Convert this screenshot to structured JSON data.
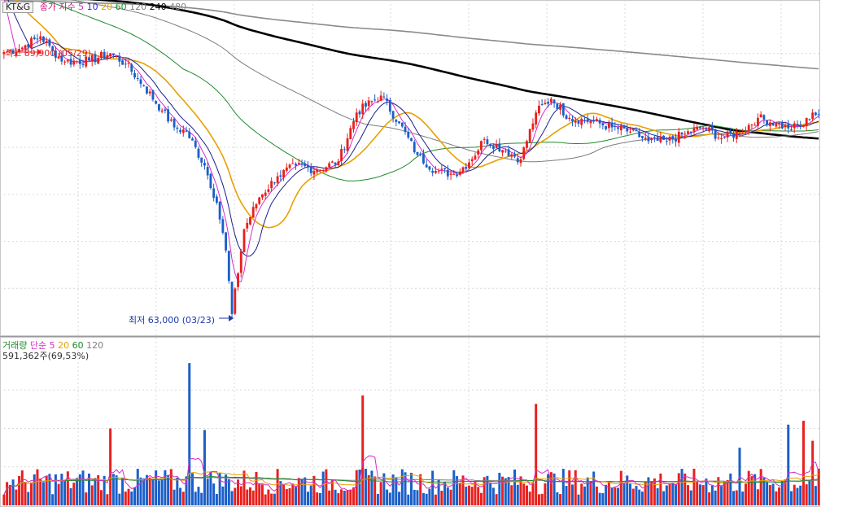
{
  "price_header": {
    "symbol": "KT&G",
    "label": "종가 지수",
    "ma_periods": [
      "5",
      "10",
      "20",
      "60",
      "120",
      "240",
      "480"
    ]
  },
  "volume_header": {
    "label": "거래량",
    "ma_label": "단순",
    "ma_periods": [
      "5",
      "20",
      "60",
      "120"
    ],
    "value_text": "591,362주(69,53%)"
  },
  "annotations": {
    "high": "최고 89,900 (05/29)",
    "low": "최저 63,000 (03/23)"
  },
  "colors": {
    "up": "#e8201e",
    "down": "#1a5fc9",
    "ma5": "#d62dc8",
    "ma10": "#1b1f8a",
    "ma20": "#e8a000",
    "ma60": "#1f8a2b",
    "ma120": "#7d7d7d",
    "ma240": "#000000",
    "ma480": "#8a8a8a",
    "grid": "#d9d9d9"
  },
  "chart_data": {
    "type": "candlestick",
    "ylim": [
      61000,
      92000
    ],
    "anchors": [
      {
        "i": 0,
        "v": 87700
      },
      {
        "i": 5,
        "v": 88000
      },
      {
        "i": 12,
        "v": 89200
      },
      {
        "i": 16,
        "v": 87800
      },
      {
        "i": 20,
        "v": 86800
      },
      {
        "i": 28,
        "v": 86900
      },
      {
        "i": 35,
        "v": 87600
      },
      {
        "i": 40,
        "v": 86600
      },
      {
        "i": 46,
        "v": 84500
      },
      {
        "i": 52,
        "v": 82200
      },
      {
        "i": 56,
        "v": 80600
      },
      {
        "i": 60,
        "v": 80200
      },
      {
        "i": 66,
        "v": 77000
      },
      {
        "i": 70,
        "v": 73500
      },
      {
        "i": 73,
        "v": 69000
      },
      {
        "i": 75,
        "v": 63000
      },
      {
        "i": 79,
        "v": 71000
      },
      {
        "i": 84,
        "v": 74000
      },
      {
        "i": 90,
        "v": 76000
      },
      {
        "i": 96,
        "v": 77000
      },
      {
        "i": 103,
        "v": 76600
      },
      {
        "i": 110,
        "v": 77400
      },
      {
        "i": 116,
        "v": 82000
      },
      {
        "i": 124,
        "v": 83600
      },
      {
        "i": 130,
        "v": 81000
      },
      {
        "i": 136,
        "v": 78000
      },
      {
        "i": 142,
        "v": 76500
      },
      {
        "i": 148,
        "v": 76200
      },
      {
        "i": 153,
        "v": 77300
      },
      {
        "i": 158,
        "v": 79500
      },
      {
        "i": 165,
        "v": 78400
      },
      {
        "i": 170,
        "v": 77600
      },
      {
        "i": 175,
        "v": 82000
      },
      {
        "i": 180,
        "v": 83300
      },
      {
        "i": 186,
        "v": 81500
      },
      {
        "i": 193,
        "v": 81200
      },
      {
        "i": 200,
        "v": 80600
      },
      {
        "i": 206,
        "v": 80200
      },
      {
        "i": 212,
        "v": 79300
      },
      {
        "i": 218,
        "v": 79300
      },
      {
        "i": 224,
        "v": 80000
      },
      {
        "i": 230,
        "v": 80600
      },
      {
        "i": 236,
        "v": 79600
      },
      {
        "i": 242,
        "v": 80100
      },
      {
        "i": 248,
        "v": 81500
      },
      {
        "i": 254,
        "v": 81000
      },
      {
        "i": 258,
        "v": 80500
      },
      {
        "i": 263,
        "v": 80800
      },
      {
        "i": 266,
        "v": 82000
      },
      {
        "i": 268,
        "v": 81800
      }
    ],
    "volume_spikes": [
      {
        "i": 35,
        "v": 100
      },
      {
        "i": 61,
        "v": 185
      },
      {
        "i": 66,
        "v": 98
      },
      {
        "i": 118,
        "v": 143
      },
      {
        "i": 175,
        "v": 132
      },
      {
        "i": 242,
        "v": 75
      },
      {
        "i": 258,
        "v": 105
      },
      {
        "i": 263,
        "v": 110
      },
      {
        "i": 266,
        "v": 84
      }
    ]
  }
}
